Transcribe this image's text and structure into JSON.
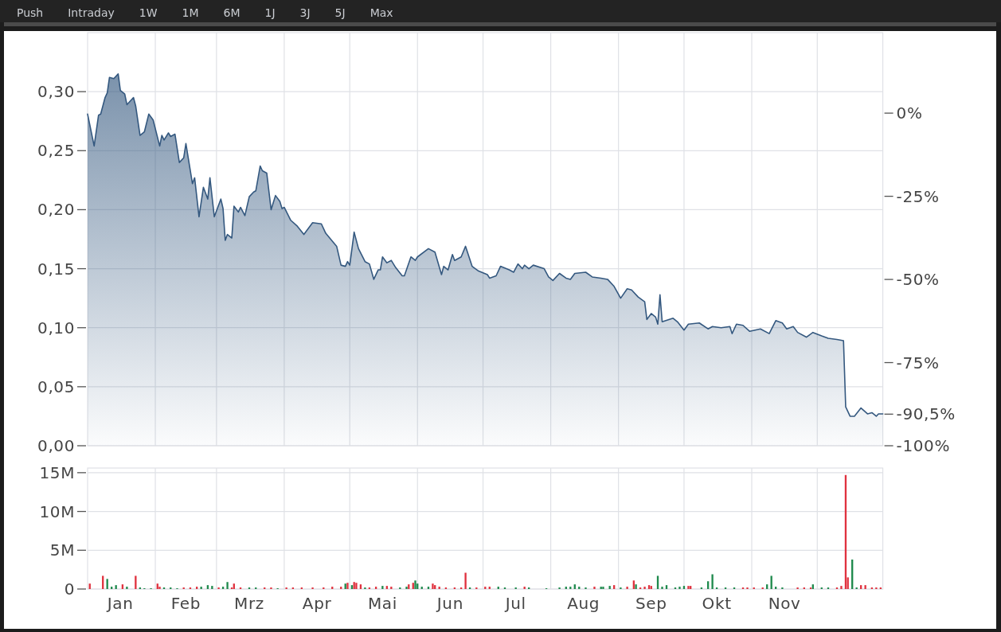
{
  "chart_data": [
    {
      "type": "other",
      "annotations": [
        "Push",
        "Intraday",
        "1W",
        "1M",
        "6M",
        "1J",
        "3J",
        "5J",
        "Max"
      ]
    },
    {
      "type": "area",
      "xlim": [
        "--01-01",
        "--12-31"
      ],
      "ylim": [
        0,
        0.35
      ],
      "y2lim": [
        -100,
        24.2
      ],
      "tick_labels": "y",
      "grid": true,
      "xticks": [
        {
          "value": "--02-01",
          "label": null
        },
        {
          "value": "--03-01",
          "label": null
        },
        {
          "value": "--04-01",
          "label": null
        },
        {
          "value": "--05-01",
          "label": null
        },
        {
          "value": "--06-01",
          "label": null
        },
        {
          "value": "--07-01",
          "label": null
        },
        {
          "value": "--08-01",
          "label": null
        },
        {
          "value": "--09-01",
          "label": null
        },
        {
          "value": "--10-01",
          "label": null
        },
        {
          "value": "--11-01",
          "label": null
        },
        {
          "value": "--12-01",
          "label": null
        }
      ],
      "yticks": [
        {
          "value": 0,
          "label": "0,00"
        },
        {
          "value": 0.05,
          "label": "0,05"
        },
        {
          "value": 0.1,
          "label": "0,10"
        },
        {
          "value": 0.15,
          "label": "0,15"
        },
        {
          "value": 0.2,
          "label": "0,20"
        },
        {
          "value": 0.25,
          "label": "0,25"
        },
        {
          "value": 0.3,
          "label": "0,30"
        }
      ],
      "y2ticks": [
        {
          "value": 0,
          "label": "0%"
        },
        {
          "value": -25,
          "label": "-25%"
        },
        {
          "value": -50,
          "label": "-50%"
        },
        {
          "value": -75,
          "label": "-75%"
        },
        {
          "value": -90.5,
          "label": "-90,5%"
        },
        {
          "value": -100,
          "label": "-100%"
        }
      ],
      "series": [
        {
          "color": "#34587f",
          "x": [
            "--01-01",
            "--01-04",
            "--01-06",
            "--01-07",
            "--01-09",
            "--01-10",
            "--01-11",
            "--01-13",
            "--01-15",
            "--01-16",
            "--01-18",
            "--01-19",
            "--01-22",
            "--01-23",
            "--01-25",
            "--01-27",
            "--01-29",
            "--01-31",
            "--02-03",
            "--02-04",
            "--02-05",
            "--02-07",
            "--02-08",
            "--02-10",
            "--02-12",
            "--02-14",
            "--02-15",
            "--02-18",
            "--02-19",
            "--02-21",
            "--02-23",
            "--02-25",
            "--02-26",
            "--02-28",
            "--03-03",
            "--03-04",
            "--03-05",
            "--03-06",
            "--03-08",
            "--03-09",
            "--03-11",
            "--03-12",
            "--03-14",
            "--03-16",
            "--03-18",
            "--03-19",
            "--03-21",
            "--03-22",
            "--03-24",
            "--03-26",
            "--03-28",
            "--03-30",
            "--03-31",
            "--04-01",
            "--04-04",
            "--04-07",
            "--04-10",
            "--04-14",
            "--04-18",
            "--04-20",
            "--04-25",
            "--04-27",
            "--04-29",
            "--04-30",
            "--05-01",
            "--05-03",
            "--05-05",
            "--05-08",
            "--05-10",
            "--05-12",
            "--05-14",
            "--05-15",
            "--05-16",
            "--05-18",
            "--05-20",
            "--05-22",
            "--05-25",
            "--05-26",
            "--05-29",
            "--05-31",
            "--06-01",
            "--06-06",
            "--06-09",
            "--06-12",
            "--06-13",
            "--06-15",
            "--06-17",
            "--06-18",
            "--06-21",
            "--06-23",
            "--06-26",
            "--06-29",
            "--07-03",
            "--07-04",
            "--07-07",
            "--07-09",
            "--07-13",
            "--07-15",
            "--07-17",
            "--07-19",
            "--07-20",
            "--07-22",
            "--07-24",
            "--07-29",
            "--07-31",
            "--08-02",
            "--08-05",
            "--08-08",
            "--08-10",
            "--08-12",
            "--08-17",
            "--08-20",
            "--08-24",
            "--08-27",
            "--08-30",
            "--09-02",
            "--09-05",
            "--09-07",
            "--09-10",
            "--09-13",
            "--09-14",
            "--09-16",
            "--09-18",
            "--09-19",
            "--09-20",
            "--09-21",
            "--09-26",
            "--09-28",
            "--10-01",
            "--10-03",
            "--10-08",
            "--10-12",
            "--10-14",
            "--10-18",
            "--10-22",
            "--10-23",
            "--10-25",
            "--10-28",
            "--10-31",
            "--11-05",
            "--11-09",
            "--11-12",
            "--11-15",
            "--11-17",
            "--11-20",
            "--11-22",
            "--11-26",
            "--11-29",
            "--12-03",
            "--12-06",
            "--12-10",
            "--12-13",
            "--12-14",
            "--12-16",
            "--12-18",
            "--12-21",
            "--12-24",
            "--12-26",
            "--12-28",
            "--12-29",
            "--12-31"
          ],
          "values": [
            0.281,
            0.254,
            0.28,
            0.281,
            0.295,
            0.299,
            0.312,
            0.311,
            0.315,
            0.301,
            0.298,
            0.289,
            0.295,
            0.288,
            0.263,
            0.266,
            0.281,
            0.276,
            0.254,
            0.263,
            0.259,
            0.265,
            0.262,
            0.264,
            0.24,
            0.244,
            0.256,
            0.222,
            0.227,
            0.194,
            0.219,
            0.209,
            0.227,
            0.194,
            0.209,
            0.201,
            0.174,
            0.179,
            0.176,
            0.203,
            0.198,
            0.202,
            0.195,
            0.211,
            0.215,
            0.216,
            0.237,
            0.233,
            0.231,
            0.2,
            0.212,
            0.207,
            0.201,
            0.202,
            0.191,
            0.186,
            0.179,
            0.189,
            0.188,
            0.18,
            0.169,
            0.153,
            0.152,
            0.156,
            0.153,
            0.181,
            0.167,
            0.156,
            0.154,
            0.141,
            0.149,
            0.149,
            0.16,
            0.155,
            0.157,
            0.151,
            0.144,
            0.144,
            0.16,
            0.157,
            0.16,
            0.167,
            0.164,
            0.145,
            0.152,
            0.149,
            0.162,
            0.157,
            0.16,
            0.169,
            0.152,
            0.148,
            0.145,
            0.142,
            0.144,
            0.152,
            0.149,
            0.147,
            0.154,
            0.15,
            0.153,
            0.15,
            0.153,
            0.15,
            0.143,
            0.14,
            0.146,
            0.142,
            0.141,
            0.146,
            0.147,
            0.143,
            0.142,
            0.141,
            0.135,
            0.125,
            0.133,
            0.132,
            0.126,
            0.122,
            0.107,
            0.112,
            0.109,
            0.103,
            0.128,
            0.105,
            0.108,
            0.105,
            0.098,
            0.103,
            0.104,
            0.099,
            0.101,
            0.1,
            0.101,
            0.095,
            0.103,
            0.102,
            0.097,
            0.099,
            0.095,
            0.106,
            0.104,
            0.099,
            0.101,
            0.096,
            0.092,
            0.096,
            0.093,
            0.091,
            0.09,
            0.089,
            0.033,
            0.025,
            0.025,
            0.032,
            0.027,
            0.028,
            0.025,
            0.027,
            0.027
          ]
        }
      ]
    },
    {
      "type": "bar",
      "xlim": [
        "--01-01",
        "--12-31"
      ],
      "ylim": [
        0,
        15600000
      ],
      "grid": true,
      "xticks": [
        {
          "value": "--01-16",
          "label": "Jan"
        },
        {
          "value": "--02-01",
          "label": null
        },
        {
          "value": "--02-15",
          "label": "Feb"
        },
        {
          "value": "--03-01",
          "label": null
        },
        {
          "value": "--03-16",
          "label": "Mrz"
        },
        {
          "value": "--04-01",
          "label": null
        },
        {
          "value": "--04-16",
          "label": "Apr"
        },
        {
          "value": "--05-01",
          "label": null
        },
        {
          "value": "--05-16",
          "label": "Mai"
        },
        {
          "value": "--06-01",
          "label": null
        },
        {
          "value": "--06-16",
          "label": "Jun"
        },
        {
          "value": "--07-01",
          "label": null
        },
        {
          "value": "--07-16",
          "label": "Jul"
        },
        {
          "value": "--08-01",
          "label": null
        },
        {
          "value": "--08-16",
          "label": "Aug"
        },
        {
          "value": "--09-01",
          "label": null
        },
        {
          "value": "--09-16",
          "label": "Sep"
        },
        {
          "value": "--10-01",
          "label": null
        },
        {
          "value": "--10-16",
          "label": "Okt"
        },
        {
          "value": "--11-01",
          "label": null
        },
        {
          "value": "--11-16",
          "label": "Nov"
        },
        {
          "value": "--12-01",
          "label": null
        }
      ],
      "yticks": [
        0,
        {
          "value": 5000000,
          "label": "5M"
        },
        {
          "value": 10000000,
          "label": "10M"
        },
        {
          "value": 15000000,
          "label": "15M"
        }
      ],
      "series": [
        {
          "color": "#e0323f",
          "x": [
            "--01-02",
            "--01-08",
            "--01-17",
            "--01-23",
            "--02-02",
            "--02-03",
            "--02-14",
            "--02-17",
            "--02-20",
            "--03-02",
            "--03-08",
            "--03-09",
            "--03-12",
            "--03-23",
            "--03-26",
            "--04-02",
            "--04-05",
            "--04-09",
            "--04-14",
            "--04-19",
            "--04-23",
            "--04-27",
            "--04-30",
            "--05-03",
            "--05-04",
            "--05-06",
            "--05-10",
            "--05-13",
            "--05-18",
            "--05-20",
            "--05-28",
            "--05-30",
            "--06-08",
            "--06-09",
            "--06-11",
            "--06-14",
            "--06-18",
            "--06-21",
            "--06-23",
            "--06-28",
            "--07-02",
            "--07-04",
            "--07-20",
            "--08-21",
            "--08-30",
            "--09-05",
            "--09-08",
            "--09-11",
            "--09-13",
            "--09-15",
            "--09-16",
            "--10-03",
            "--10-04",
            "--10-28",
            "--10-30",
            "--11-02",
            "--11-06",
            "--11-22",
            "--11-25",
            "--11-28",
            "--12-10",
            "--12-12",
            "--12-14",
            "--12-15",
            "--12-21",
            "--12-23",
            "--12-26",
            "--12-28",
            "--12-30"
          ],
          "values": [
            700000,
            1700000,
            600000,
            1700000,
            700000,
            300000,
            200000,
            200000,
            300000,
            200000,
            200000,
            700000,
            200000,
            200000,
            200000,
            200000,
            200000,
            200000,
            200000,
            200000,
            300000,
            300000,
            800000,
            900000,
            800000,
            600000,
            200000,
            300000,
            400000,
            300000,
            600000,
            800000,
            700000,
            500000,
            300000,
            200000,
            200000,
            200000,
            2100000,
            200000,
            300000,
            300000,
            300000,
            300000,
            500000,
            300000,
            1100000,
            200000,
            300000,
            500000,
            400000,
            400000,
            400000,
            200000,
            200000,
            200000,
            200000,
            200000,
            200000,
            200000,
            200000,
            400000,
            14700000,
            1500000,
            500000,
            500000,
            200000,
            200000,
            200000
          ]
        },
        {
          "color": "#1f8a4d",
          "x": [
            "--01-10",
            "--01-12",
            "--01-14",
            "--01-19",
            "--01-25",
            "--01-27",
            "--01-30",
            "--02-05",
            "--02-08",
            "--02-11",
            "--02-22",
            "--02-25",
            "--02-27",
            "--03-04",
            "--03-06",
            "--03-16",
            "--03-19",
            "--03-29",
            "--04-29",
            "--05-02",
            "--05-08",
            "--05-16",
            "--05-24",
            "--05-27",
            "--05-31",
            "--06-01",
            "--06-03",
            "--06-06",
            "--06-25",
            "--07-08",
            "--07-11",
            "--07-16",
            "--07-22",
            "--07-30",
            "--08-05",
            "--08-08",
            "--08-10",
            "--08-12",
            "--08-14",
            "--08-17",
            "--08-24",
            "--08-25",
            "--08-28",
            "--09-02",
            "--09-09",
            "--09-19",
            "--09-21",
            "--09-23",
            "--09-27",
            "--09-29",
            "--10-01",
            "--10-09",
            "--10-12",
            "--10-14",
            "--10-16",
            "--10-20",
            "--10-24",
            "--11-08",
            "--11-10",
            "--11-12",
            "--11-15",
            "--11-29",
            "--12-03",
            "--12-06",
            "--12-17",
            "--12-19"
          ],
          "values": [
            1300000,
            300000,
            500000,
            300000,
            200000,
            100000,
            100000,
            200000,
            200000,
            100000,
            300000,
            500000,
            400000,
            300000,
            900000,
            200000,
            200000,
            100000,
            700000,
            500000,
            200000,
            400000,
            200000,
            300000,
            1100000,
            700000,
            300000,
            300000,
            200000,
            300000,
            200000,
            200000,
            200000,
            100000,
            200000,
            300000,
            300000,
            600000,
            300000,
            200000,
            300000,
            300000,
            400000,
            200000,
            600000,
            1700000,
            300000,
            500000,
            200000,
            300000,
            400000,
            200000,
            1000000,
            1900000,
            200000,
            200000,
            200000,
            600000,
            1700000,
            300000,
            200000,
            600000,
            200000,
            200000,
            3800000,
            200000
          ]
        }
      ]
    }
  ]
}
